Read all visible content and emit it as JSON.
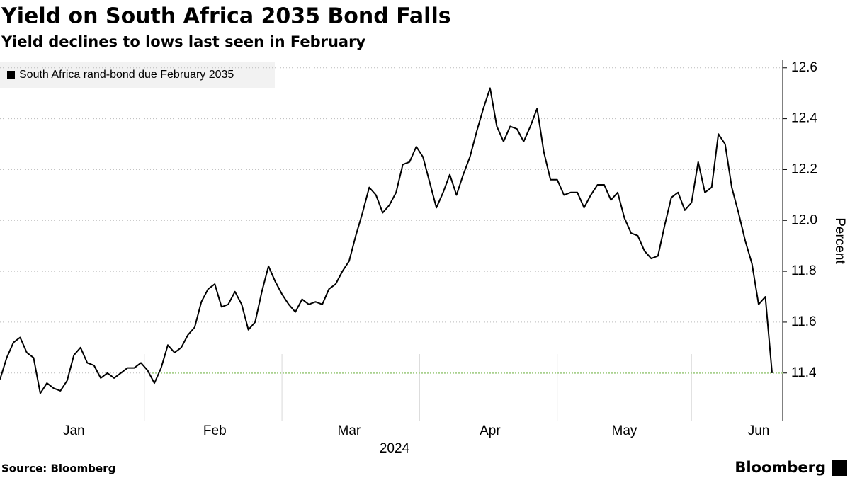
{
  "chart_data": {
    "type": "line",
    "title": "Yield on South Africa 2035 Bond Falls",
    "subtitle": "Yield declines to lows last seen in February",
    "source": "Source: Bloomberg",
    "brand": "Bloomberg",
    "y_axis_label": "Percent",
    "year_label": "2024",
    "categories": [
      null,
      null,
      null,
      null,
      null,
      null,
      null,
      null,
      null,
      null,
      null,
      "Jan",
      null,
      null,
      null,
      null,
      null,
      null,
      null,
      null,
      null,
      null,
      null,
      null,
      null,
      null,
      null,
      null,
      null,
      null,
      null,
      null,
      "Feb",
      null,
      null,
      null,
      null,
      null,
      null,
      null,
      null,
      null,
      null,
      null,
      null,
      null,
      null,
      null,
      null,
      null,
      null,
      null,
      "Mar",
      null,
      null,
      null,
      null,
      null,
      null,
      null,
      null,
      null,
      null,
      null,
      null,
      null,
      null,
      null,
      null,
      null,
      null,
      null,
      null,
      "Apr",
      null,
      null,
      null,
      null,
      null,
      null,
      null,
      null,
      null,
      null,
      null,
      null,
      null,
      null,
      null,
      null,
      null,
      null,
      null,
      "May",
      null,
      null,
      null,
      null,
      null,
      null,
      null,
      null,
      null,
      null,
      null,
      null,
      null,
      null,
      null,
      null,
      null,
      null,
      null,
      "Jun",
      null,
      null
    ],
    "series": [
      {
        "name": "South Africa rand-bond due February 2035",
        "color": "#000000",
        "values": [
          11.375,
          11.46,
          11.52,
          11.54,
          11.48,
          11.46,
          11.32,
          11.36,
          11.34,
          11.33,
          11.37,
          11.47,
          11.5,
          11.44,
          11.43,
          11.38,
          11.4,
          11.38,
          11.4,
          11.42,
          11.42,
          11.44,
          11.41,
          11.36,
          11.42,
          11.51,
          11.48,
          11.5,
          11.55,
          11.58,
          11.68,
          11.73,
          11.75,
          11.66,
          11.67,
          11.72,
          11.67,
          11.57,
          11.6,
          11.72,
          11.82,
          11.76,
          11.71,
          11.67,
          11.64,
          11.69,
          11.67,
          11.68,
          11.67,
          11.73,
          11.75,
          11.8,
          11.84,
          11.94,
          12.03,
          12.13,
          12.1,
          12.03,
          12.06,
          12.11,
          12.22,
          12.23,
          12.29,
          12.25,
          12.15,
          12.05,
          12.11,
          12.18,
          12.1,
          12.18,
          12.25,
          12.35,
          12.44,
          12.52,
          12.37,
          12.31,
          12.37,
          12.36,
          12.31,
          12.37,
          12.44,
          12.27,
          12.16,
          12.16,
          12.1,
          12.11,
          12.11,
          12.05,
          12.1,
          12.14,
          12.14,
          12.08,
          12.11,
          12.01,
          11.95,
          11.94,
          11.88,
          11.85,
          11.86,
          11.98,
          12.09,
          12.11,
          12.04,
          12.07,
          12.23,
          12.11,
          12.13,
          12.34,
          12.3,
          12.13,
          12.03,
          11.92,
          11.83,
          11.67,
          11.7,
          11.4
        ]
      }
    ],
    "ylim": [
      11.21,
      12.63
    ],
    "yticks": [
      11.4,
      11.6,
      11.8,
      {
        "value": 12,
        "label": "12.0"
      },
      12.2,
      12.4,
      12.6
    ],
    "grid": true,
    "reference_line": {
      "color": "#a9d18e"
    },
    "legend": "top-left"
  }
}
